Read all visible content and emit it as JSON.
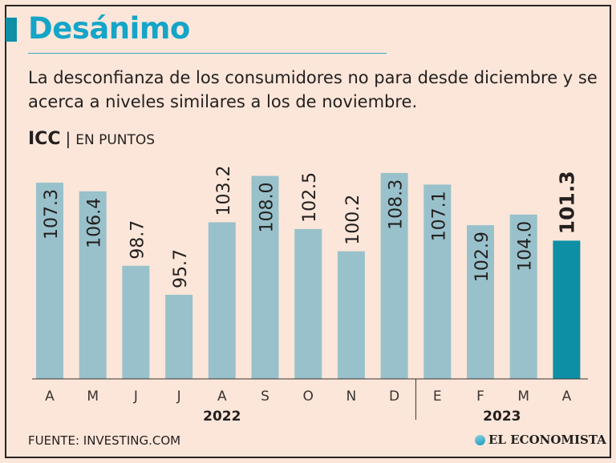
{
  "header": {
    "title": "Desánimo",
    "subtitle": "La desconfianza de los consumidores no para desde diciembre y se acerca a niveles similares a los de noviembre.",
    "unit_bold": "ICC",
    "unit_sep": "|",
    "unit": "EN PUNTOS"
  },
  "footer": {
    "source": "FUENTE: INVESTING.COM",
    "logo": "EL ECONOMISTA"
  },
  "colors": {
    "bar": "#98c1cb",
    "highlight": "#0d8fa6",
    "title": "#14a5c8",
    "background": "#fbe6d9"
  },
  "chart_data": {
    "type": "bar",
    "categories": [
      "A",
      "M",
      "J",
      "J",
      "A",
      "S",
      "O",
      "N",
      "D",
      "E",
      "F",
      "M",
      "A"
    ],
    "values": [
      107.3,
      106.4,
      98.7,
      95.7,
      103.2,
      108.0,
      102.5,
      100.2,
      108.3,
      107.1,
      102.9,
      104.0,
      101.3
    ],
    "labels": [
      "107.3",
      "106.4",
      "98.7",
      "95.7",
      "103.2",
      "108.0",
      "102.5",
      "100.2",
      "108.3",
      "107.1",
      "102.9",
      "104.0",
      "101.3"
    ],
    "year_groups": [
      {
        "label": "2022",
        "from": 0,
        "to": 8
      },
      {
        "label": "2023",
        "from": 9,
        "to": 12
      }
    ],
    "highlight_index": 12,
    "ylim": [
      87,
      110
    ],
    "grid": false
  }
}
